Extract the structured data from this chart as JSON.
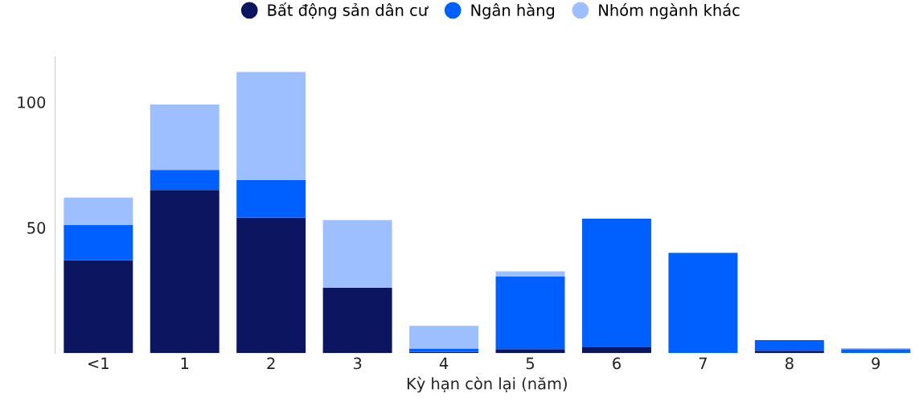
{
  "chart_data": {
    "type": "bar",
    "stacked": true,
    "xlabel": "Kỳ hạn còn lại (năm)",
    "categories": [
      "<1",
      "1",
      "2",
      "3",
      "4",
      "5",
      "6",
      "7",
      "8",
      "9"
    ],
    "series": [
      {
        "name": "Bất động sản dân cư",
        "color": "#0b1560",
        "values": [
          37,
          65,
          54,
          26,
          0.6,
          1.6,
          2.6,
          0,
          1,
          0
        ]
      },
      {
        "name": "Ngân hàng",
        "color": "#0060ff",
        "values": [
          14,
          8,
          15,
          0,
          1.3,
          29,
          51,
          40,
          4.2,
          1.6
        ]
      },
      {
        "name": "Nhóm ngành khác",
        "color": "#9dbfff",
        "values": [
          11,
          26,
          43,
          27,
          9,
          2,
          0,
          0,
          0,
          0.4
        ]
      }
    ],
    "ylim": [
      0,
      118
    ],
    "yticks": [
      50,
      100
    ],
    "grid": false,
    "legend": "top"
  }
}
